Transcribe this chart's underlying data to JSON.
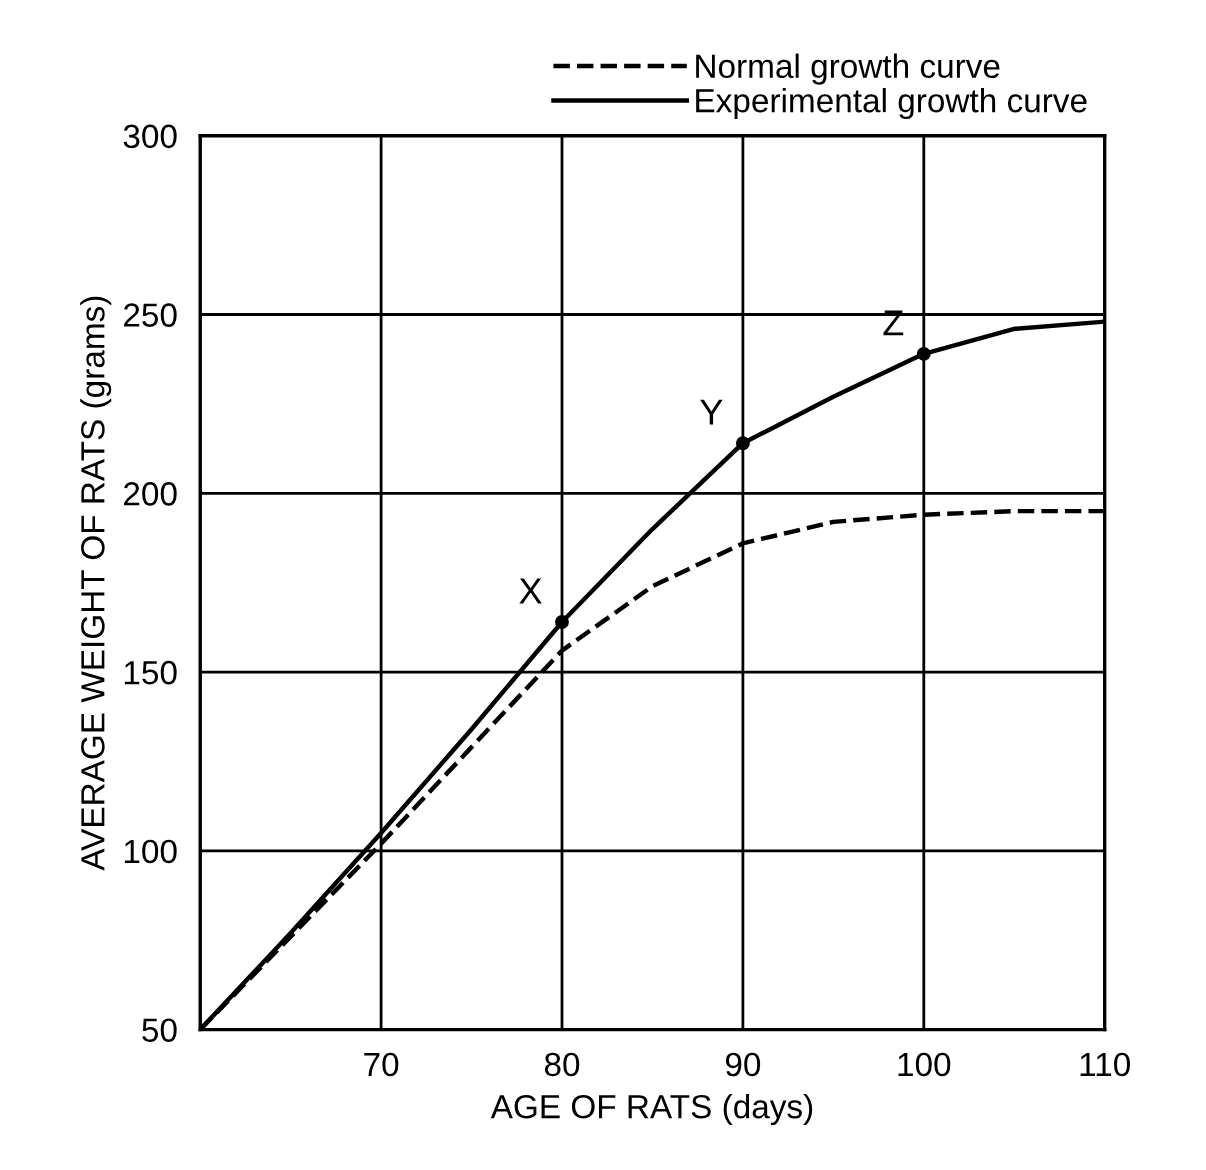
{
  "chart_data": {
    "type": "line",
    "xlabel": "AGE OF RATS (days)",
    "ylabel": "AVERAGE WEIGHT OF RATS (grams)",
    "xlim": [
      60,
      110
    ],
    "xticks": [
      {
        "value": 60,
        "label": null
      },
      70,
      80,
      90,
      100,
      110
    ],
    "ylim": [
      50,
      300
    ],
    "yticks": [
      50,
      100,
      150,
      200,
      250,
      300
    ],
    "grid": true,
    "legend": "top right",
    "marker": "none",
    "series": [
      {
        "name": "Normal growth curve",
        "color": "#000000",
        "line_style": "dashed",
        "x": [
          60,
          65,
          70,
          75,
          80,
          85,
          90,
          95,
          100,
          105,
          110
        ],
        "values": [
          50,
          76,
          102,
          129,
          156,
          174,
          186,
          192,
          194,
          195,
          195
        ]
      },
      {
        "name": "Experimental growth curve",
        "color": "#000000",
        "line_style": "solid",
        "x": [
          60,
          65,
          70,
          75,
          80,
          85,
          87.5,
          90,
          95,
          100,
          105,
          110
        ],
        "values": [
          50,
          77,
          105,
          134,
          164,
          190,
          202,
          214,
          227,
          239,
          246,
          248
        ]
      }
    ],
    "annotations": [
      {
        "text": "X",
        "x": 80,
        "y": 164
      },
      {
        "text": "Y",
        "x": 90,
        "y": 214
      },
      {
        "text": "Z",
        "x": 100,
        "y": 239
      }
    ]
  }
}
